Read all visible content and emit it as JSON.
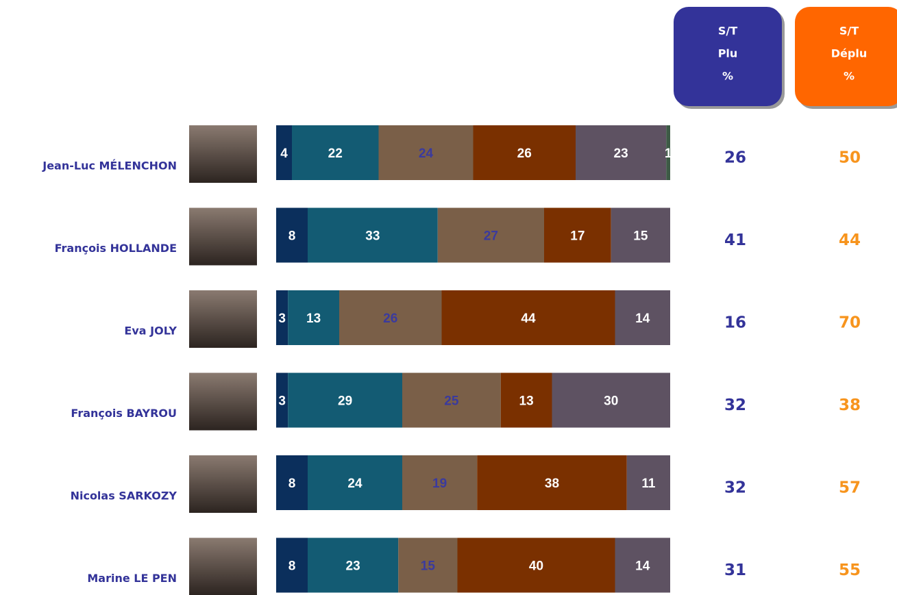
{
  "chart_data": {
    "type": "bar",
    "orientation": "horizontal",
    "stacked": true,
    "categories": [
      "Jean-Luc MÉLENCHON",
      "François HOLLANDE",
      "Eva JOLY",
      "François BAYROU",
      "Nicolas SARKOZY",
      "Marine LE PEN"
    ],
    "xlim": [
      0,
      100
    ],
    "series": [
      {
        "color": "#0b2f5c",
        "label_color": "#ffffff",
        "values": [
          4,
          8,
          3,
          3,
          8,
          8
        ]
      },
      {
        "color": "#135b73",
        "label_color": "#ffffff",
        "values": [
          22,
          33,
          13,
          29,
          24,
          23
        ]
      },
      {
        "color": "#7a5f48",
        "label_color": "#3a3a9e",
        "values": [
          24,
          27,
          26,
          25,
          19,
          15
        ]
      },
      {
        "color": "#7a3000",
        "label_color": "#ffffff",
        "values": [
          26,
          17,
          44,
          13,
          38,
          40
        ]
      },
      {
        "color": "#5e5262",
        "label_color": "#ffffff",
        "values": [
          23,
          15,
          14,
          30,
          11,
          14
        ]
      },
      {
        "color": "#3d5a45",
        "label_color": "#ffffff",
        "values": [
          1,
          null,
          null,
          null,
          null,
          null
        ]
      }
    ]
  },
  "summary_columns": [
    {
      "header": [
        "S/T",
        "Plu",
        "%"
      ],
      "color": "#333399",
      "text_color": "#333399",
      "values": [
        26,
        41,
        16,
        32,
        32,
        31
      ]
    },
    {
      "header": [
        "S/T",
        "Déplu",
        "%"
      ],
      "color": "#ff6600",
      "text_color": "#f7941d",
      "values": [
        50,
        44,
        70,
        38,
        57,
        55
      ]
    }
  ]
}
